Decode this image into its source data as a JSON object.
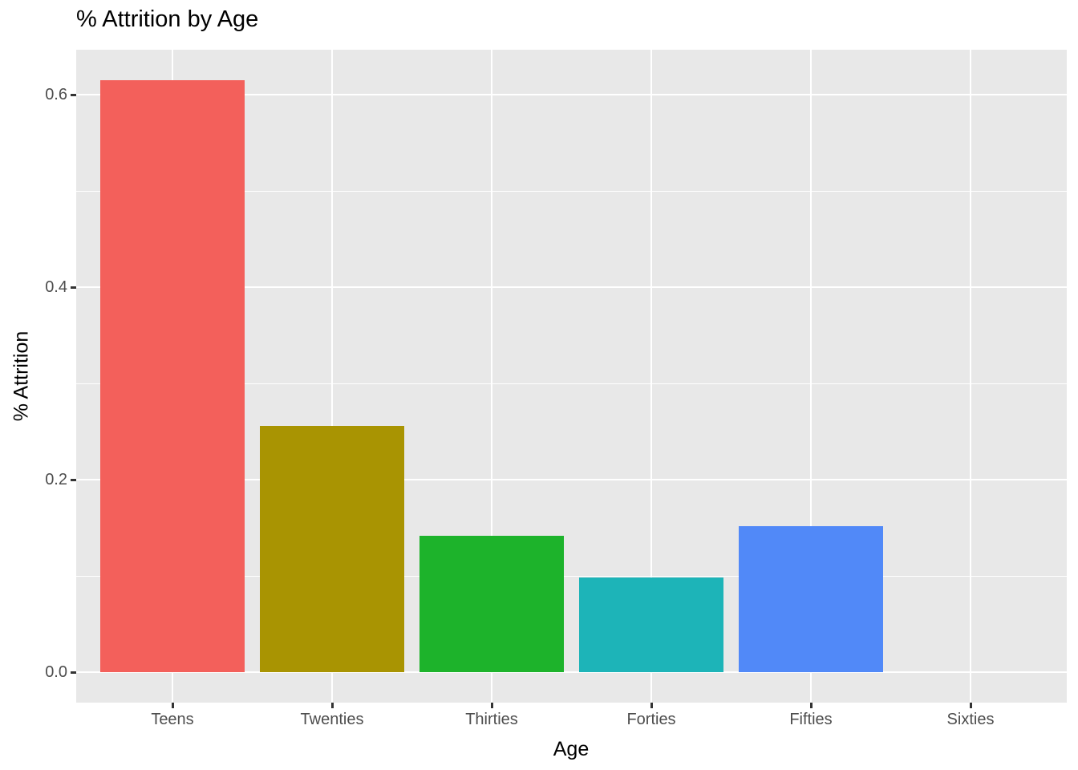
{
  "chart_data": {
    "type": "bar",
    "title": "% Attrition by Age",
    "xlabel": "Age",
    "ylabel": "% Attrition",
    "categories": [
      "Teens",
      "Twenties",
      "Thirties",
      "Forties",
      "Fifties",
      "Sixties"
    ],
    "values": [
      0.615,
      0.256,
      0.142,
      0.098,
      0.152,
      0
    ],
    "bar_colors": [
      "#F3605B",
      "#A99402",
      "#1DB32B",
      "#1DB4B8",
      "#5189F8",
      "#F564E3"
    ],
    "y_ticks": [
      0.0,
      0.2,
      0.4,
      0.6
    ],
    "y_tick_labels": [
      "0.0",
      "0.2",
      "0.4",
      "0.6"
    ],
    "y_minor_ticks": [
      0.1,
      0.3,
      0.5
    ],
    "ylim": [
      0,
      0.65
    ],
    "grid": true,
    "legend_position": "none",
    "panel_background": "#E8E8E8",
    "grid_color": "#FFFFFF",
    "tick_mark_color": "#333333",
    "tick_label_color": "#4D4D4D",
    "title_color": "#000000"
  }
}
